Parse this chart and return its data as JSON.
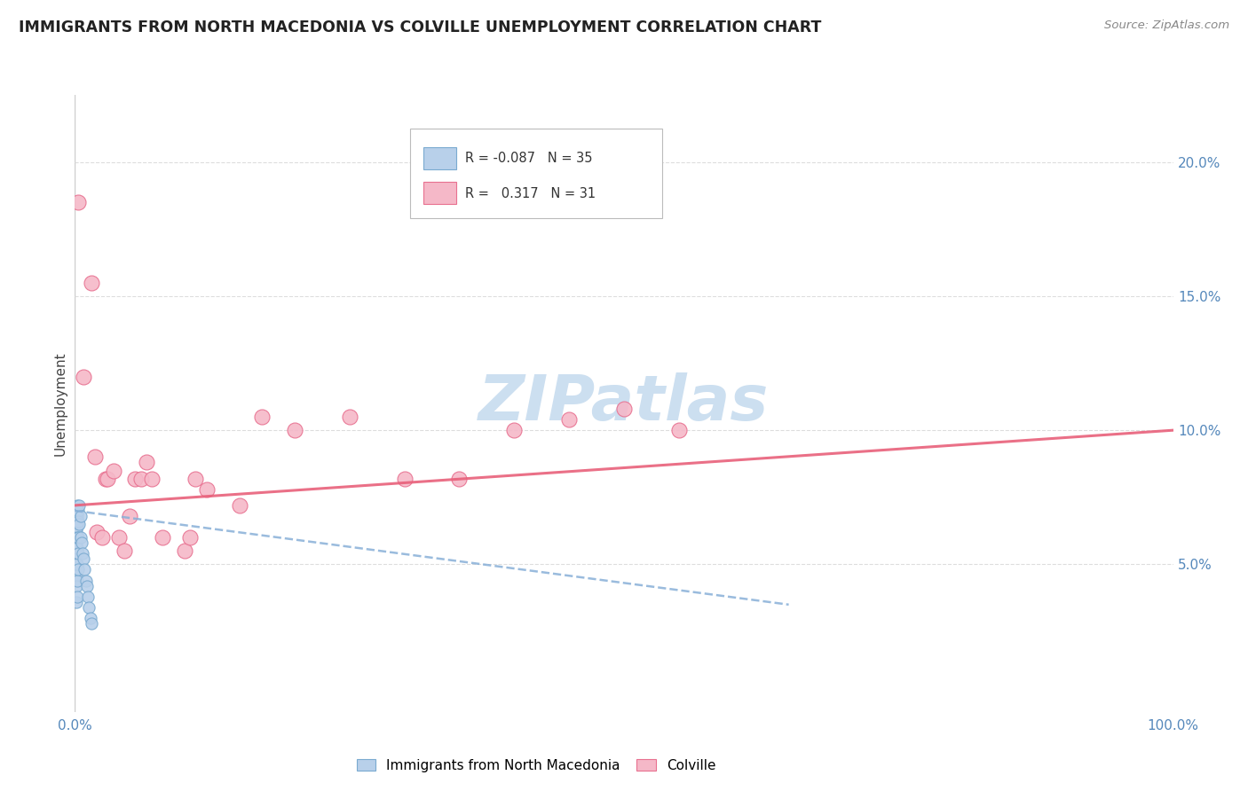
{
  "title": "IMMIGRANTS FROM NORTH MACEDONIA VS COLVILLE UNEMPLOYMENT CORRELATION CHART",
  "source": "Source: ZipAtlas.com",
  "ylabel": "Unemployment",
  "xlim": [
    0.0,
    1.0
  ],
  "ylim": [
    -0.005,
    0.225
  ],
  "yticks_right": [
    0.05,
    0.1,
    0.15,
    0.2
  ],
  "ytick_right_labels": [
    "5.0%",
    "10.0%",
    "15.0%",
    "20.0%"
  ],
  "blue_fill": "#b8d0ea",
  "blue_edge": "#7aaad0",
  "pink_fill": "#f5b8c8",
  "pink_edge": "#e87090",
  "blue_trend_color": "#88b0d8",
  "pink_trend_color": "#e8607a",
  "watermark_color": "#ccdff0",
  "grid_color": "#dddddd",
  "spine_color": "#cccccc",
  "tick_color": "#5588bb",
  "title_color": "#222222",
  "source_color": "#888888",
  "legend_text_color": "#333333",
  "blue_points_x": [
    0.001,
    0.001,
    0.001,
    0.001,
    0.001,
    0.001,
    0.001,
    0.001,
    0.002,
    0.002,
    0.002,
    0.002,
    0.002,
    0.002,
    0.002,
    0.002,
    0.003,
    0.003,
    0.003,
    0.003,
    0.003,
    0.004,
    0.004,
    0.005,
    0.005,
    0.006,
    0.007,
    0.008,
    0.009,
    0.01,
    0.011,
    0.012,
    0.013,
    0.014,
    0.015
  ],
  "blue_points_y": [
    0.068,
    0.062,
    0.058,
    0.054,
    0.05,
    0.046,
    0.042,
    0.036,
    0.072,
    0.068,
    0.064,
    0.06,
    0.056,
    0.05,
    0.044,
    0.038,
    0.07,
    0.066,
    0.06,
    0.054,
    0.048,
    0.072,
    0.065,
    0.068,
    0.06,
    0.058,
    0.054,
    0.052,
    0.048,
    0.044,
    0.042,
    0.038,
    0.034,
    0.03,
    0.028
  ],
  "pink_points_x": [
    0.003,
    0.008,
    0.015,
    0.018,
    0.02,
    0.025,
    0.028,
    0.03,
    0.035,
    0.04,
    0.045,
    0.05,
    0.055,
    0.06,
    0.065,
    0.07,
    0.08,
    0.1,
    0.105,
    0.11,
    0.12,
    0.15,
    0.17,
    0.2,
    0.25,
    0.3,
    0.35,
    0.4,
    0.45,
    0.5,
    0.55
  ],
  "pink_points_y": [
    0.185,
    0.12,
    0.155,
    0.09,
    0.062,
    0.06,
    0.082,
    0.082,
    0.085,
    0.06,
    0.055,
    0.068,
    0.082,
    0.082,
    0.088,
    0.082,
    0.06,
    0.055,
    0.06,
    0.082,
    0.078,
    0.072,
    0.105,
    0.1,
    0.105,
    0.082,
    0.082,
    0.1,
    0.104,
    0.108,
    0.1
  ],
  "blue_trend_x": [
    0.0,
    0.65
  ],
  "blue_trend_y": [
    0.07,
    0.035
  ],
  "pink_trend_x": [
    0.0,
    1.0
  ],
  "pink_trend_y": [
    0.072,
    0.1
  ]
}
